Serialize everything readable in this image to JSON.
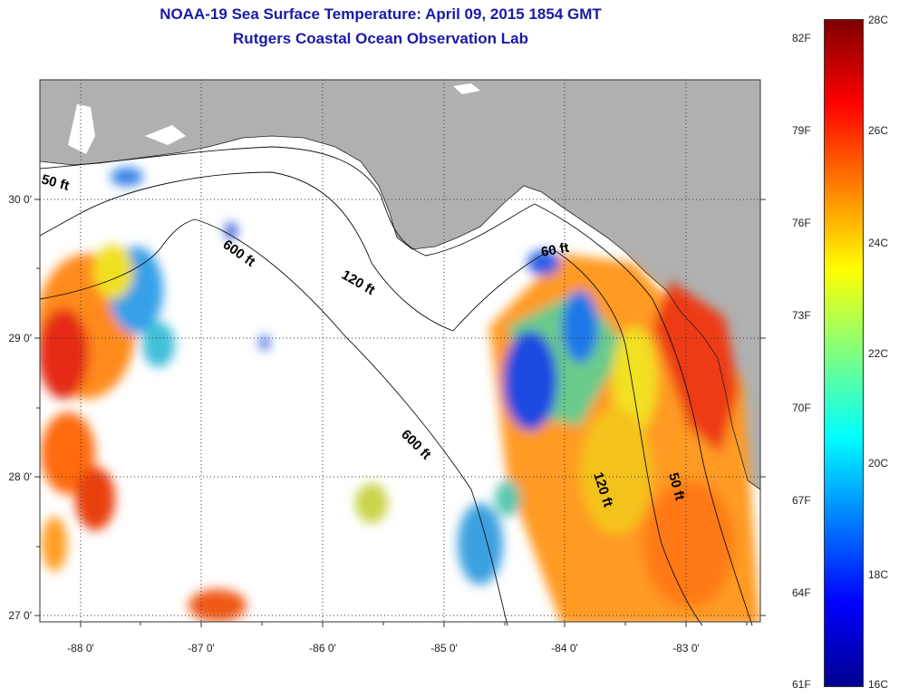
{
  "title": "NOAA-19 Sea Surface Temperature:  April 09, 2015 1854 GMT",
  "subtitle": "Rutgers Coastal Ocean Observation Lab",
  "lon_ticks": [
    "-88 0'",
    "-87 0'",
    "-86 0'",
    "-85 0'",
    "-84 0'",
    "-83 0'"
  ],
  "lat_ticks": [
    "30 0'",
    "29 0'",
    "28 0'",
    "27 0'"
  ],
  "contours": [
    "50 ft",
    "600 ft",
    "120 ft",
    "60 ft",
    "600 ft",
    "120 ft",
    "50 ft"
  ],
  "colorbar": {
    "celsius": [
      "28C",
      "26C",
      "24C",
      "22C",
      "20C",
      "18C",
      "16C"
    ],
    "fahrenheit": [
      "82F",
      "79F",
      "76F",
      "73F",
      "70F",
      "67F",
      "64F",
      "61F"
    ]
  },
  "colors": {
    "land": "#b0b0b0",
    "title": "#1a1aa6"
  }
}
